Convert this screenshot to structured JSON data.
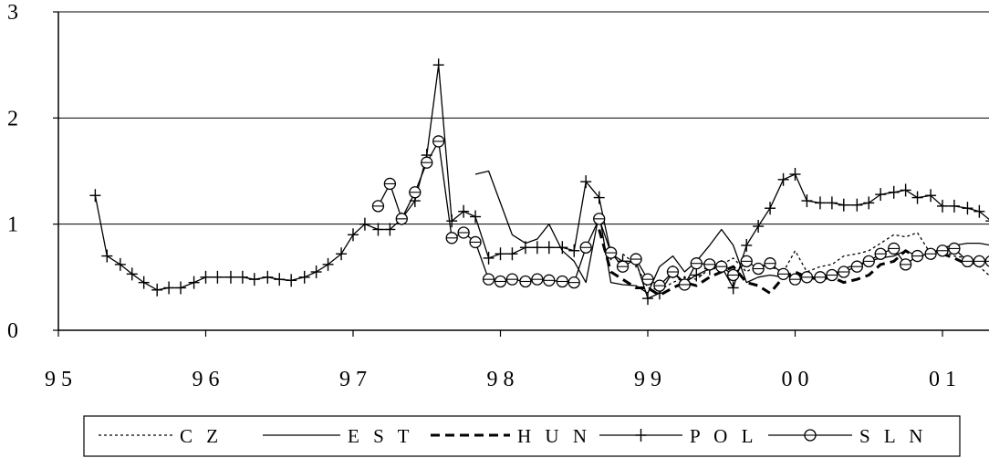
{
  "chart_data": {
    "type": "line",
    "title": "",
    "xlabel": "",
    "ylabel": "",
    "x_ticks": [
      {
        "value": 1995,
        "label": "9 5"
      },
      {
        "value": 1996,
        "label": "9 6"
      },
      {
        "value": 1997,
        "label": "9 7"
      },
      {
        "value": 1998,
        "label": "9 8"
      },
      {
        "value": 1999,
        "label": "9 9"
      },
      {
        "value": 2000,
        "label": "0 0"
      },
      {
        "value": 2001,
        "label": "0 1"
      }
    ],
    "y_ticks": [
      {
        "value": 0,
        "label": "0"
      },
      {
        "value": 1,
        "label": "1"
      },
      {
        "value": 2,
        "label": "2"
      },
      {
        "value": 3,
        "label": "3"
      }
    ],
    "xlim": [
      1995,
      2001.33
    ],
    "ylim": [
      0,
      3
    ],
    "grid": "horizontal",
    "legend_position": "bottom",
    "series": [
      {
        "name": "C Z",
        "style": "dotted",
        "x": [
          1998.83,
          1998.92,
          1999.0,
          1999.08,
          1999.17,
          1999.25,
          1999.33,
          1999.42,
          1999.5,
          1999.58,
          1999.67,
          1999.75,
          1999.83,
          1999.92,
          2000.0,
          2000.08,
          2000.17,
          2000.25,
          2000.33,
          2000.42,
          2000.5,
          2000.58,
          2000.67,
          2000.75,
          2000.83,
          2000.92,
          2001.0,
          2001.08,
          2001.17,
          2001.25,
          2001.33
        ],
        "y": [
          0.72,
          0.62,
          0.4,
          0.38,
          0.45,
          0.5,
          0.48,
          0.58,
          0.62,
          0.68,
          0.55,
          0.62,
          0.6,
          0.55,
          0.75,
          0.55,
          0.6,
          0.62,
          0.7,
          0.72,
          0.75,
          0.82,
          0.9,
          0.88,
          0.92,
          0.72,
          0.75,
          0.7,
          0.68,
          0.6,
          0.5
        ]
      },
      {
        "name": "E S T",
        "style": "solid",
        "x": [
          1997.83,
          1997.92,
          1998.0,
          1998.08,
          1998.17,
          1998.25,
          1998.33,
          1998.42,
          1998.5,
          1998.58,
          1998.67,
          1998.75,
          1998.83,
          1998.92,
          1999.0,
          1999.08,
          1999.17,
          1999.25,
          1999.33,
          1999.42,
          1999.5,
          1999.58,
          1999.67,
          1999.75,
          1999.83,
          1999.92,
          2000.0,
          2000.08,
          2000.17,
          2000.25,
          2000.33,
          2000.42,
          2000.5,
          2000.58,
          2000.67,
          2000.75,
          2000.83,
          2000.92,
          2001.0,
          2001.08,
          2001.17,
          2001.25,
          2001.33
        ],
        "y": [
          1.47,
          1.5,
          1.2,
          0.9,
          0.82,
          0.86,
          1.0,
          0.75,
          0.65,
          0.45,
          1.1,
          0.45,
          0.43,
          0.42,
          0.35,
          0.6,
          0.7,
          0.55,
          0.65,
          0.8,
          0.95,
          0.8,
          0.45,
          0.5,
          0.52,
          0.5,
          0.52,
          0.5,
          0.5,
          0.52,
          0.58,
          0.62,
          0.65,
          0.68,
          0.7,
          0.75,
          0.7,
          0.72,
          0.78,
          0.8,
          0.82,
          0.82,
          0.8
        ]
      },
      {
        "name": "H U N",
        "style": "dashed",
        "x": [
          1998.67,
          1998.75,
          1998.83,
          1998.92,
          1999.0,
          1999.08,
          1999.17,
          1999.25,
          1999.33,
          1999.42,
          1999.5,
          1999.58,
          1999.67,
          1999.75,
          1999.83,
          1999.92,
          2000.0,
          2000.08,
          2000.17,
          2000.25,
          2000.33,
          2000.42,
          2000.5,
          2000.58,
          2000.67,
          2000.75,
          2000.83,
          2000.92,
          2001.0,
          2001.08,
          2001.17,
          2001.25,
          2001.33
        ],
        "y": [
          0.95,
          0.55,
          0.48,
          0.4,
          0.4,
          0.33,
          0.4,
          0.45,
          0.42,
          0.5,
          0.55,
          0.6,
          0.45,
          0.42,
          0.35,
          0.5,
          0.55,
          0.5,
          0.48,
          0.5,
          0.45,
          0.48,
          0.52,
          0.62,
          0.65,
          0.75,
          0.68,
          0.72,
          0.72,
          0.68,
          0.62,
          0.65,
          0.65
        ]
      },
      {
        "name": "P O L",
        "style": "solid-plus",
        "x": [
          1995.25,
          1995.33,
          1995.42,
          1995.5,
          1995.58,
          1995.67,
          1995.75,
          1995.83,
          1995.92,
          1996.0,
          1996.08,
          1996.17,
          1996.25,
          1996.33,
          1996.42,
          1996.5,
          1996.58,
          1996.67,
          1996.75,
          1996.83,
          1996.92,
          1997.0,
          1997.08,
          1997.17,
          1997.25,
          1997.33,
          1997.42,
          1997.5,
          1997.58,
          1997.67,
          1997.75,
          1997.83,
          1997.92,
          1998.0,
          1998.08,
          1998.17,
          1998.25,
          1998.33,
          1998.42,
          1998.5,
          1998.58,
          1998.67,
          1998.75,
          1998.83,
          1998.92,
          1999.0,
          1999.08,
          1999.17,
          1999.25,
          1999.33,
          1999.42,
          1999.5,
          1999.58,
          1999.67,
          1999.75,
          1999.83,
          1999.92,
          2000.0,
          2000.08,
          2000.17,
          2000.25,
          2000.33,
          2000.42,
          2000.5,
          2000.58,
          2000.67,
          2000.75,
          2000.83,
          2000.92,
          2001.0,
          2001.08,
          2001.17,
          2001.25,
          2001.33
        ],
        "y": [
          1.27,
          0.7,
          0.62,
          0.53,
          0.45,
          0.38,
          0.4,
          0.4,
          0.45,
          0.5,
          0.5,
          0.5,
          0.5,
          0.48,
          0.5,
          0.48,
          0.47,
          0.5,
          0.55,
          0.62,
          0.72,
          0.9,
          1.0,
          0.95,
          0.95,
          1.05,
          1.22,
          1.65,
          2.5,
          1.03,
          1.12,
          1.07,
          0.68,
          0.72,
          0.72,
          0.78,
          0.78,
          0.78,
          0.78,
          0.75,
          1.4,
          1.25,
          0.72,
          0.65,
          0.65,
          0.3,
          0.35,
          0.55,
          0.45,
          0.52,
          0.58,
          0.6,
          0.4,
          0.8,
          0.98,
          1.15,
          1.42,
          1.47,
          1.22,
          1.2,
          1.2,
          1.18,
          1.18,
          1.2,
          1.28,
          1.3,
          1.32,
          1.25,
          1.27,
          1.17,
          1.17,
          1.15,
          1.12,
          1.03
        ]
      },
      {
        "name": "S L N",
        "style": "solid-circle",
        "x": [
          1997.17,
          1997.25,
          1997.33,
          1997.42,
          1997.5,
          1997.58,
          1997.67,
          1997.75,
          1997.83,
          1997.92,
          1998.0,
          1998.08,
          1998.17,
          1998.25,
          1998.33,
          1998.42,
          1998.5,
          1998.58,
          1998.67,
          1998.75,
          1998.83,
          1998.92,
          1999.0,
          1999.08,
          1999.17,
          1999.25,
          1999.33,
          1999.42,
          1999.5,
          1999.58,
          1999.67,
          1999.75,
          1999.83,
          1999.92,
          2000.0,
          2000.08,
          2000.17,
          2000.25,
          2000.33,
          2000.42,
          2000.5,
          2000.58,
          2000.67,
          2000.75,
          2000.83,
          2000.92,
          2001.0,
          2001.08,
          2001.17,
          2001.25,
          2001.33
        ],
        "y": [
          1.17,
          1.38,
          1.05,
          1.3,
          1.58,
          1.78,
          0.87,
          0.92,
          0.83,
          0.48,
          0.46,
          0.48,
          0.46,
          0.48,
          0.47,
          0.46,
          0.45,
          0.78,
          1.05,
          0.73,
          0.6,
          0.67,
          0.48,
          0.42,
          0.55,
          0.43,
          0.63,
          0.62,
          0.6,
          0.52,
          0.65,
          0.58,
          0.63,
          0.53,
          0.48,
          0.5,
          0.5,
          0.52,
          0.55,
          0.6,
          0.65,
          0.72,
          0.77,
          0.62,
          0.7,
          0.72,
          0.75,
          0.77,
          0.65,
          0.65,
          0.65
        ]
      }
    ]
  }
}
